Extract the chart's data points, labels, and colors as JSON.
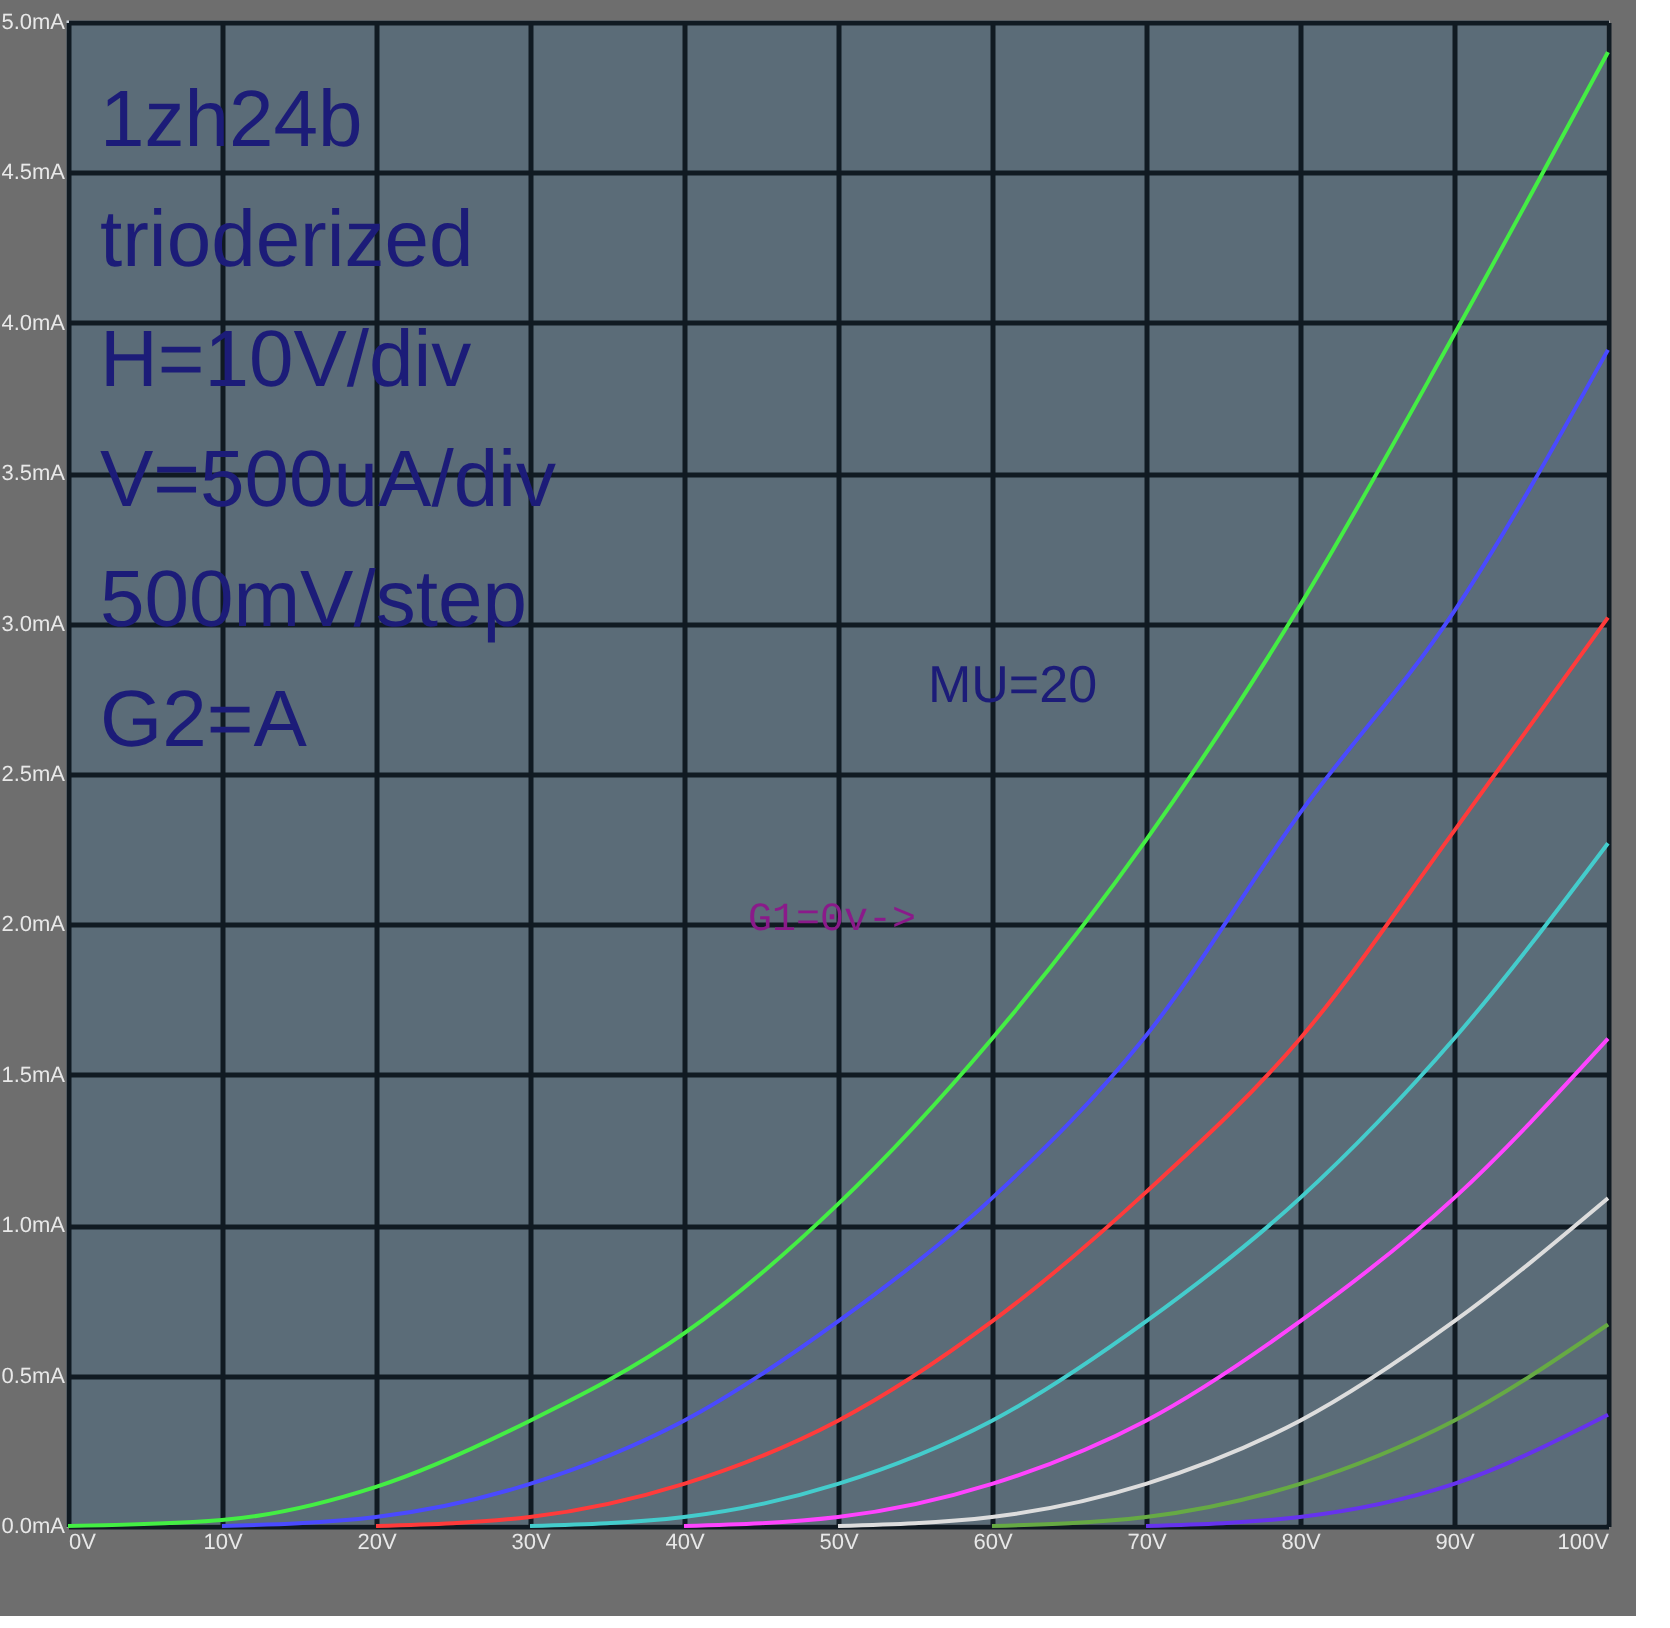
{
  "chart_data": {
    "type": "line",
    "x": [
      0,
      10,
      20,
      30,
      40,
      50,
      60,
      70,
      80,
      90,
      100
    ],
    "series": [
      {
        "color": "#44ee44",
        "values": [
          0,
          0.02,
          0.13,
          0.35,
          0.64,
          1.07,
          1.62,
          2.28,
          3.06,
          3.96,
          4.9
        ]
      },
      {
        "color": "#4a4aff",
        "values": [
          null,
          0,
          0.03,
          0.14,
          0.35,
          0.68,
          1.09,
          1.63,
          2.37,
          3.04,
          3.91
        ]
      },
      {
        "color": "#ff3b3b",
        "values": [
          null,
          null,
          0,
          0.03,
          0.14,
          0.35,
          0.68,
          1.11,
          1.62,
          2.31,
          3.02
        ]
      },
      {
        "color": "#44cccc",
        "values": [
          null,
          null,
          null,
          0,
          0.03,
          0.14,
          0.35,
          0.68,
          1.09,
          1.62,
          2.27
        ]
      },
      {
        "color": "#ff44ff",
        "values": [
          null,
          null,
          null,
          null,
          0,
          0.03,
          0.14,
          0.35,
          0.68,
          1.09,
          1.62
        ]
      },
      {
        "color": "#dddddd",
        "values": [
          null,
          null,
          null,
          null,
          null,
          0,
          0.03,
          0.14,
          0.35,
          0.68,
          1.09
        ]
      },
      {
        "color": "#66aa44",
        "values": [
          null,
          null,
          null,
          null,
          null,
          null,
          0,
          0.03,
          0.14,
          0.35,
          0.67
        ]
      },
      {
        "color": "#6633ee",
        "values": [
          null,
          null,
          null,
          null,
          null,
          null,
          null,
          0,
          0.03,
          0.14,
          0.37
        ]
      }
    ],
    "xlim": [
      0,
      100
    ],
    "xticks": [
      {
        "value": 0,
        "label": "0V"
      },
      {
        "value": 10,
        "label": "10V"
      },
      {
        "value": 20,
        "label": "20V"
      },
      {
        "value": 30,
        "label": "30V"
      },
      {
        "value": 40,
        "label": "40V"
      },
      {
        "value": 50,
        "label": "50V"
      },
      {
        "value": 60,
        "label": "60V"
      },
      {
        "value": 70,
        "label": "70V"
      },
      {
        "value": 80,
        "label": "80V"
      },
      {
        "value": 90,
        "label": "90V"
      },
      {
        "value": 100,
        "label": "100V"
      }
    ],
    "ylim": [
      0,
      5
    ],
    "yticks": [
      {
        "value": 0,
        "label": "0.0mA"
      },
      {
        "value": 0.5,
        "label": "0.5mA"
      },
      {
        "value": 1,
        "label": "1.0mA"
      },
      {
        "value": 1.5,
        "label": "1.5mA"
      },
      {
        "value": 2,
        "label": "2.0mA"
      },
      {
        "value": 2.5,
        "label": "2.5mA"
      },
      {
        "value": 3,
        "label": "3.0mA"
      },
      {
        "value": 3.5,
        "label": "3.5mA"
      },
      {
        "value": 4,
        "label": "4.0mA"
      },
      {
        "value": 4.5,
        "label": "4.5mA"
      },
      {
        "value": 5,
        "label": "5.0mA"
      }
    ],
    "grid": true,
    "marker": "none",
    "line_style": "solid",
    "annotations": [
      "1zh24b",
      "trioderized",
      "H=10V/div",
      "V=500uA/div",
      "500mV/step",
      "G2=A",
      "MU=20",
      "G1=0v->"
    ]
  }
}
